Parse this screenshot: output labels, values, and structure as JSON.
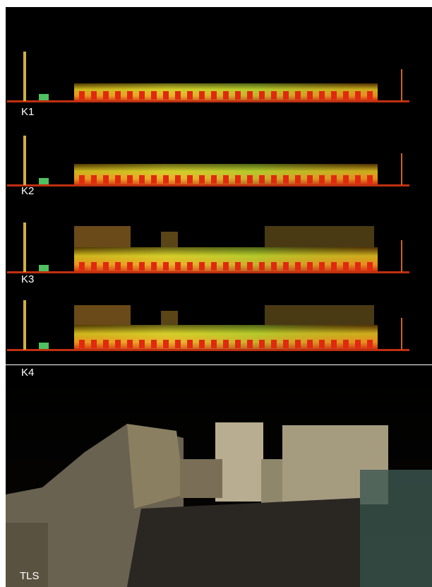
{
  "panels": [
    {
      "label": "K1"
    },
    {
      "label": "K2"
    },
    {
      "label": "K3"
    },
    {
      "label": "K4"
    },
    {
      "label": "TLS"
    }
  ]
}
